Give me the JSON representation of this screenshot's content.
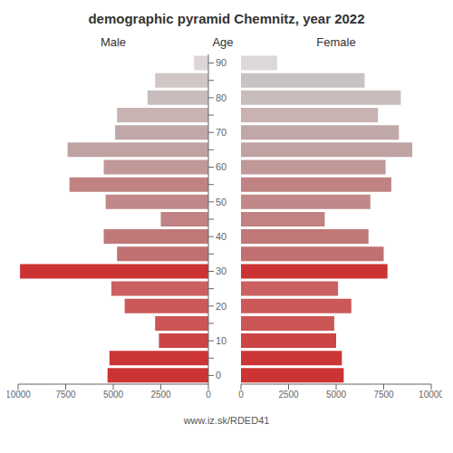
{
  "chart_data": {
    "type": "bar",
    "title": "demographic pyramid Chemnitz, year 2022",
    "ylabel": "Age",
    "annotations": [
      "www.iz.sk/RDED41"
    ],
    "orientation": "horizontal",
    "categories": [
      "0",
      null,
      "10",
      null,
      "20",
      null,
      "30",
      null,
      "40",
      null,
      "50",
      null,
      "60",
      null,
      "70",
      null,
      "80",
      null,
      "90"
    ],
    "series": [
      {
        "name": "Male",
        "values": [
          5300,
          5200,
          2600,
          2800,
          4400,
          5100,
          9900,
          4800,
          5500,
          2500,
          5400,
          7300,
          5500,
          7400,
          4900,
          4800,
          3200,
          2800,
          750
        ],
        "colors": [
          "#cc3333",
          "#cc3535",
          "#cc4545",
          "#cc5555",
          "#cc5858",
          "#cc6060",
          "#cc3333",
          "#c07070",
          "#c07878",
          "#c08282",
          "#c08888",
          "#c08282",
          "#c09898",
          "#c0a2a2",
          "#c0a8a8",
          "#c8b2b2",
          "#c8bcbc",
          "#d0c6c6",
          "#ddd5d5"
        ]
      },
      {
        "name": "Female",
        "values": [
          5400,
          5300,
          5000,
          4900,
          5800,
          5100,
          7700,
          7500,
          6700,
          4400,
          6800,
          7900,
          7600,
          9000,
          8300,
          7200,
          8400,
          6500,
          1900
        ],
        "colors": [
          "#cc3333",
          "#cc3535",
          "#cc4545",
          "#cc5555",
          "#cc5858",
          "#cc6060",
          "#cc3333",
          "#c07070",
          "#c07878",
          "#c08282",
          "#c08888",
          "#c08282",
          "#c09898",
          "#c0a2a2",
          "#c0a8a8",
          "#c8b2b2",
          "#c8bcbc",
          "#c8c2c2",
          "#ddd8d8"
        ]
      }
    ],
    "xlim": [
      0,
      10000
    ],
    "xticks": [
      0,
      2500,
      5000,
      7500,
      10000
    ]
  }
}
